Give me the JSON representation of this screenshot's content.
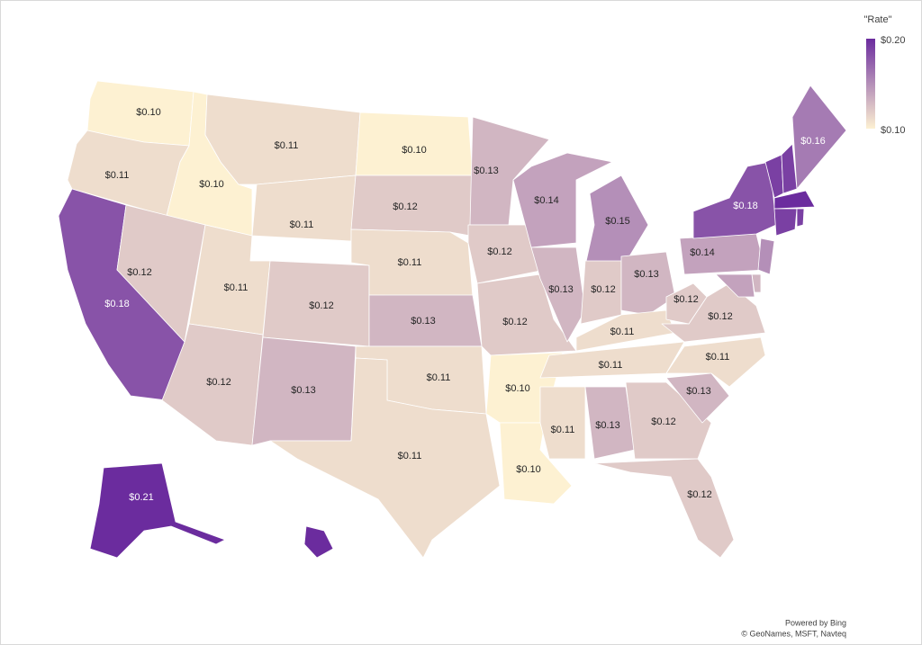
{
  "chart_data": {
    "type": "choropleth",
    "legend_title": "\"Rate\"",
    "color_low": "#fdf1d2",
    "color_high": "#6b2c9e",
    "colorbar_ticks": [
      {
        "value": 0.2,
        "label": "$0.20"
      },
      {
        "value": 0.1,
        "label": "$0.10"
      }
    ],
    "values": [
      0.1,
      0.11,
      0.18,
      0.1,
      0.12,
      0.11,
      0.11,
      0.11,
      0.12,
      0.12,
      0.13,
      0.1,
      0.12,
      0.11,
      0.13,
      0.11,
      0.11,
      0.13,
      0.12,
      0.12,
      0.1,
      0.1,
      0.14,
      0.13,
      0.15,
      0.12,
      0.13,
      0.11,
      0.11,
      0.11,
      0.13,
      0.12,
      0.12,
      0.13,
      0.11,
      0.12,
      0.12,
      0.14,
      0.18,
      0.16,
      0.19,
      0.19,
      0.2,
      0.19,
      0.19,
      0.15,
      0.13,
      0.14,
      0.21,
      0.21
    ],
    "value_labels": [
      "$0.10",
      "$0.11",
      "$0.18",
      "$0.10",
      "$0.12",
      "$0.11",
      "$0.11",
      "$0.11",
      "$0.12",
      "$0.12",
      "$0.13",
      "$0.10",
      "$0.12",
      "$0.11",
      "$0.13",
      "$0.11",
      "$0.11",
      "$0.13",
      "$0.12",
      "$0.12",
      "$0.10",
      "$0.10",
      "$0.14",
      "$0.13",
      "$0.15",
      "$0.12",
      "$0.13",
      "$0.11",
      "$0.11",
      "$0.11",
      "$0.13",
      "$0.12",
      "$0.12",
      "$0.13",
      "$0.11",
      "$0.12",
      "$0.12",
      "$0.14",
      "$0.18",
      "$0.16",
      null,
      null,
      null,
      null,
      null,
      null,
      null,
      null,
      "$0.21",
      null
    ],
    "attribution": [
      "Powered by Bing",
      "© GeoNames, MSFT, Navteq"
    ]
  }
}
